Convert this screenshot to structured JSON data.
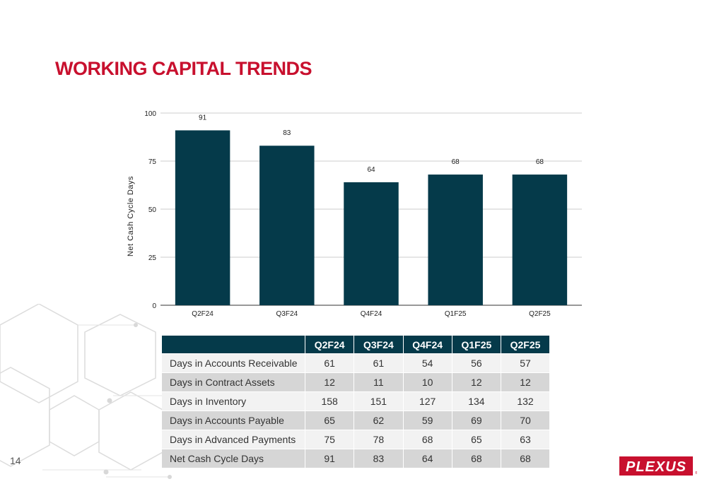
{
  "title": "WORKING CAPITAL TRENDS",
  "page_number": "14",
  "brand": {
    "logo_text": "PLEXUS",
    "color": "#c8102e"
  },
  "colors": {
    "bar": "#053a4a",
    "header_bg": "#053a4a",
    "title": "#c8102e"
  },
  "chart_data": {
    "type": "bar",
    "categories": [
      "Q2F24",
      "Q3F24",
      "Q4F24",
      "Q1F25",
      "Q2F25"
    ],
    "values": [
      91,
      83,
      64,
      68,
      68
    ],
    "data_labels": [
      "91",
      "83",
      "64",
      "68",
      "68"
    ],
    "title": "",
    "xlabel": "",
    "ylabel": "Net Cash Cycle Days",
    "ylim": [
      0,
      100
    ],
    "yticks": [
      0,
      25,
      50,
      75,
      100
    ],
    "grid": true,
    "legend": "none"
  },
  "table": {
    "headers": [
      "",
      "Q2F24",
      "Q3F24",
      "Q4F24",
      "Q1F25",
      "Q2F25"
    ],
    "rows": [
      {
        "label": "Days in Accounts Receivable",
        "values": [
          "61",
          "61",
          "54",
          "56",
          "57"
        ]
      },
      {
        "label": "Days in Contract Assets",
        "values": [
          "12",
          "11",
          "10",
          "12",
          "12"
        ]
      },
      {
        "label": "Days in Inventory",
        "values": [
          "158",
          "151",
          "127",
          "134",
          "132"
        ]
      },
      {
        "label": "Days in Accounts Payable",
        "values": [
          "65",
          "62",
          "59",
          "69",
          "70"
        ]
      },
      {
        "label": "Days in Advanced Payments",
        "values": [
          "75",
          "78",
          "68",
          "65",
          "63"
        ]
      },
      {
        "label": "Net Cash Cycle Days",
        "values": [
          "91",
          "83",
          "64",
          "68",
          "68"
        ]
      }
    ]
  }
}
